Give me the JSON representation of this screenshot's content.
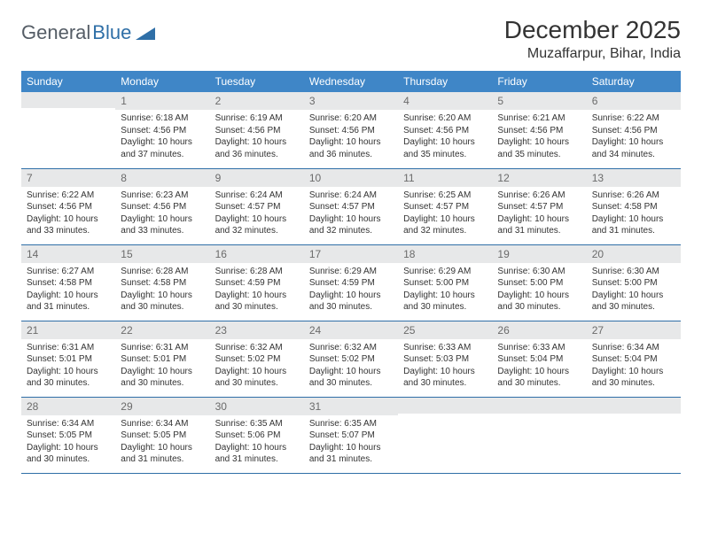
{
  "brand": {
    "part1": "General",
    "part2": "Blue"
  },
  "title": "December 2025",
  "location": "Muzaffarpur, Bihar, India",
  "header_bg": "#3f86c7",
  "header_fg": "#ffffff",
  "daynum_bg": "#e7e8e9",
  "row_border": "#2f6fa7",
  "day_headers": [
    "Sunday",
    "Monday",
    "Tuesday",
    "Wednesday",
    "Thursday",
    "Friday",
    "Saturday"
  ],
  "weeks": [
    [
      {
        "n": "",
        "sunrise": "",
        "sunset": "",
        "daylight": ""
      },
      {
        "n": "1",
        "sunrise": "Sunrise: 6:18 AM",
        "sunset": "Sunset: 4:56 PM",
        "daylight": "Daylight: 10 hours and 37 minutes."
      },
      {
        "n": "2",
        "sunrise": "Sunrise: 6:19 AM",
        "sunset": "Sunset: 4:56 PM",
        "daylight": "Daylight: 10 hours and 36 minutes."
      },
      {
        "n": "3",
        "sunrise": "Sunrise: 6:20 AM",
        "sunset": "Sunset: 4:56 PM",
        "daylight": "Daylight: 10 hours and 36 minutes."
      },
      {
        "n": "4",
        "sunrise": "Sunrise: 6:20 AM",
        "sunset": "Sunset: 4:56 PM",
        "daylight": "Daylight: 10 hours and 35 minutes."
      },
      {
        "n": "5",
        "sunrise": "Sunrise: 6:21 AM",
        "sunset": "Sunset: 4:56 PM",
        "daylight": "Daylight: 10 hours and 35 minutes."
      },
      {
        "n": "6",
        "sunrise": "Sunrise: 6:22 AM",
        "sunset": "Sunset: 4:56 PM",
        "daylight": "Daylight: 10 hours and 34 minutes."
      }
    ],
    [
      {
        "n": "7",
        "sunrise": "Sunrise: 6:22 AM",
        "sunset": "Sunset: 4:56 PM",
        "daylight": "Daylight: 10 hours and 33 minutes."
      },
      {
        "n": "8",
        "sunrise": "Sunrise: 6:23 AM",
        "sunset": "Sunset: 4:56 PM",
        "daylight": "Daylight: 10 hours and 33 minutes."
      },
      {
        "n": "9",
        "sunrise": "Sunrise: 6:24 AM",
        "sunset": "Sunset: 4:57 PM",
        "daylight": "Daylight: 10 hours and 32 minutes."
      },
      {
        "n": "10",
        "sunrise": "Sunrise: 6:24 AM",
        "sunset": "Sunset: 4:57 PM",
        "daylight": "Daylight: 10 hours and 32 minutes."
      },
      {
        "n": "11",
        "sunrise": "Sunrise: 6:25 AM",
        "sunset": "Sunset: 4:57 PM",
        "daylight": "Daylight: 10 hours and 32 minutes."
      },
      {
        "n": "12",
        "sunrise": "Sunrise: 6:26 AM",
        "sunset": "Sunset: 4:57 PM",
        "daylight": "Daylight: 10 hours and 31 minutes."
      },
      {
        "n": "13",
        "sunrise": "Sunrise: 6:26 AM",
        "sunset": "Sunset: 4:58 PM",
        "daylight": "Daylight: 10 hours and 31 minutes."
      }
    ],
    [
      {
        "n": "14",
        "sunrise": "Sunrise: 6:27 AM",
        "sunset": "Sunset: 4:58 PM",
        "daylight": "Daylight: 10 hours and 31 minutes."
      },
      {
        "n": "15",
        "sunrise": "Sunrise: 6:28 AM",
        "sunset": "Sunset: 4:58 PM",
        "daylight": "Daylight: 10 hours and 30 minutes."
      },
      {
        "n": "16",
        "sunrise": "Sunrise: 6:28 AM",
        "sunset": "Sunset: 4:59 PM",
        "daylight": "Daylight: 10 hours and 30 minutes."
      },
      {
        "n": "17",
        "sunrise": "Sunrise: 6:29 AM",
        "sunset": "Sunset: 4:59 PM",
        "daylight": "Daylight: 10 hours and 30 minutes."
      },
      {
        "n": "18",
        "sunrise": "Sunrise: 6:29 AM",
        "sunset": "Sunset: 5:00 PM",
        "daylight": "Daylight: 10 hours and 30 minutes."
      },
      {
        "n": "19",
        "sunrise": "Sunrise: 6:30 AM",
        "sunset": "Sunset: 5:00 PM",
        "daylight": "Daylight: 10 hours and 30 minutes."
      },
      {
        "n": "20",
        "sunrise": "Sunrise: 6:30 AM",
        "sunset": "Sunset: 5:00 PM",
        "daylight": "Daylight: 10 hours and 30 minutes."
      }
    ],
    [
      {
        "n": "21",
        "sunrise": "Sunrise: 6:31 AM",
        "sunset": "Sunset: 5:01 PM",
        "daylight": "Daylight: 10 hours and 30 minutes."
      },
      {
        "n": "22",
        "sunrise": "Sunrise: 6:31 AM",
        "sunset": "Sunset: 5:01 PM",
        "daylight": "Daylight: 10 hours and 30 minutes."
      },
      {
        "n": "23",
        "sunrise": "Sunrise: 6:32 AM",
        "sunset": "Sunset: 5:02 PM",
        "daylight": "Daylight: 10 hours and 30 minutes."
      },
      {
        "n": "24",
        "sunrise": "Sunrise: 6:32 AM",
        "sunset": "Sunset: 5:02 PM",
        "daylight": "Daylight: 10 hours and 30 minutes."
      },
      {
        "n": "25",
        "sunrise": "Sunrise: 6:33 AM",
        "sunset": "Sunset: 5:03 PM",
        "daylight": "Daylight: 10 hours and 30 minutes."
      },
      {
        "n": "26",
        "sunrise": "Sunrise: 6:33 AM",
        "sunset": "Sunset: 5:04 PM",
        "daylight": "Daylight: 10 hours and 30 minutes."
      },
      {
        "n": "27",
        "sunrise": "Sunrise: 6:34 AM",
        "sunset": "Sunset: 5:04 PM",
        "daylight": "Daylight: 10 hours and 30 minutes."
      }
    ],
    [
      {
        "n": "28",
        "sunrise": "Sunrise: 6:34 AM",
        "sunset": "Sunset: 5:05 PM",
        "daylight": "Daylight: 10 hours and 30 minutes."
      },
      {
        "n": "29",
        "sunrise": "Sunrise: 6:34 AM",
        "sunset": "Sunset: 5:05 PM",
        "daylight": "Daylight: 10 hours and 31 minutes."
      },
      {
        "n": "30",
        "sunrise": "Sunrise: 6:35 AM",
        "sunset": "Sunset: 5:06 PM",
        "daylight": "Daylight: 10 hours and 31 minutes."
      },
      {
        "n": "31",
        "sunrise": "Sunrise: 6:35 AM",
        "sunset": "Sunset: 5:07 PM",
        "daylight": "Daylight: 10 hours and 31 minutes."
      },
      {
        "n": "",
        "sunrise": "",
        "sunset": "",
        "daylight": ""
      },
      {
        "n": "",
        "sunrise": "",
        "sunset": "",
        "daylight": ""
      },
      {
        "n": "",
        "sunrise": "",
        "sunset": "",
        "daylight": ""
      }
    ]
  ]
}
